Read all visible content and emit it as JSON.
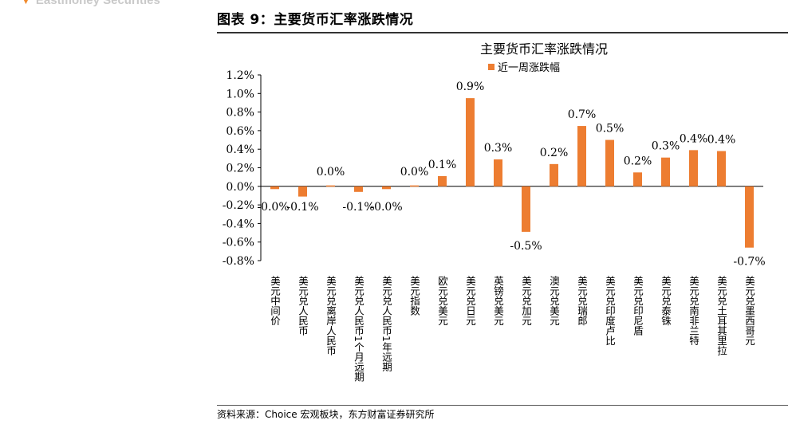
{
  "header": {
    "brand": "Eastmoney Securities",
    "figure_title": "图表 9：主要货币汇率涨跌情况"
  },
  "footer": {
    "source": "资料来源：Choice 宏观板块，东方财富证券研究所"
  },
  "colors": {
    "bar": "#ED7D31",
    "axis": "#000000",
    "brand_triangle": "#F08A2C"
  },
  "chart_data": {
    "type": "bar",
    "title": "主要货币汇率涨跌情况",
    "legend_position": "top",
    "grid": false,
    "ylim": [
      -0.8,
      1.2
    ],
    "yticks": [
      "1.2%",
      "1.0%",
      "0.8%",
      "0.6%",
      "0.4%",
      "0.2%",
      "0.0%",
      "-0.2%",
      "-0.4%",
      "-0.6%",
      "-0.8%"
    ],
    "ytick_values": [
      1.2,
      1.0,
      0.8,
      0.6,
      0.4,
      0.2,
      0.0,
      -0.2,
      -0.4,
      -0.6,
      -0.8
    ],
    "categories": [
      "美元中间价",
      "美元兑人民币",
      "美元兑离岸人民币",
      "美元兑人民币1个月远期",
      "美元兑人民币1年远期",
      "美元指数",
      "欧元兑美元",
      "美元兑日元",
      "英镑兑美元",
      "美元兑加元",
      "澳元兑美元",
      "美元兑瑞郎",
      "美元兑印度卢比",
      "美元兑印尼盾",
      "美元兑泰铢",
      "美元兑南非兰特",
      "美元兑土耳其里拉",
      "美元兑墨西哥元"
    ],
    "series": [
      {
        "name": "近一周涨跌幅",
        "values": [
          -0.03,
          -0.11,
          0.01,
          -0.06,
          -0.03,
          0.01,
          0.11,
          0.95,
          0.29,
          -0.49,
          0.24,
          0.65,
          0.5,
          0.15,
          0.31,
          0.39,
          0.38,
          -0.66
        ],
        "labels": [
          "-0.0%",
          "-0.1%",
          "0.0%",
          "-0.1%",
          "-0.0%",
          "0.0%",
          "0.1%",
          "0.9%",
          "0.3%",
          "-0.5%",
          "0.2%",
          "0.7%",
          "0.5%",
          "0.2%",
          "0.3%",
          "0.4%",
          "0.4%",
          "-0.7%"
        ]
      }
    ]
  }
}
